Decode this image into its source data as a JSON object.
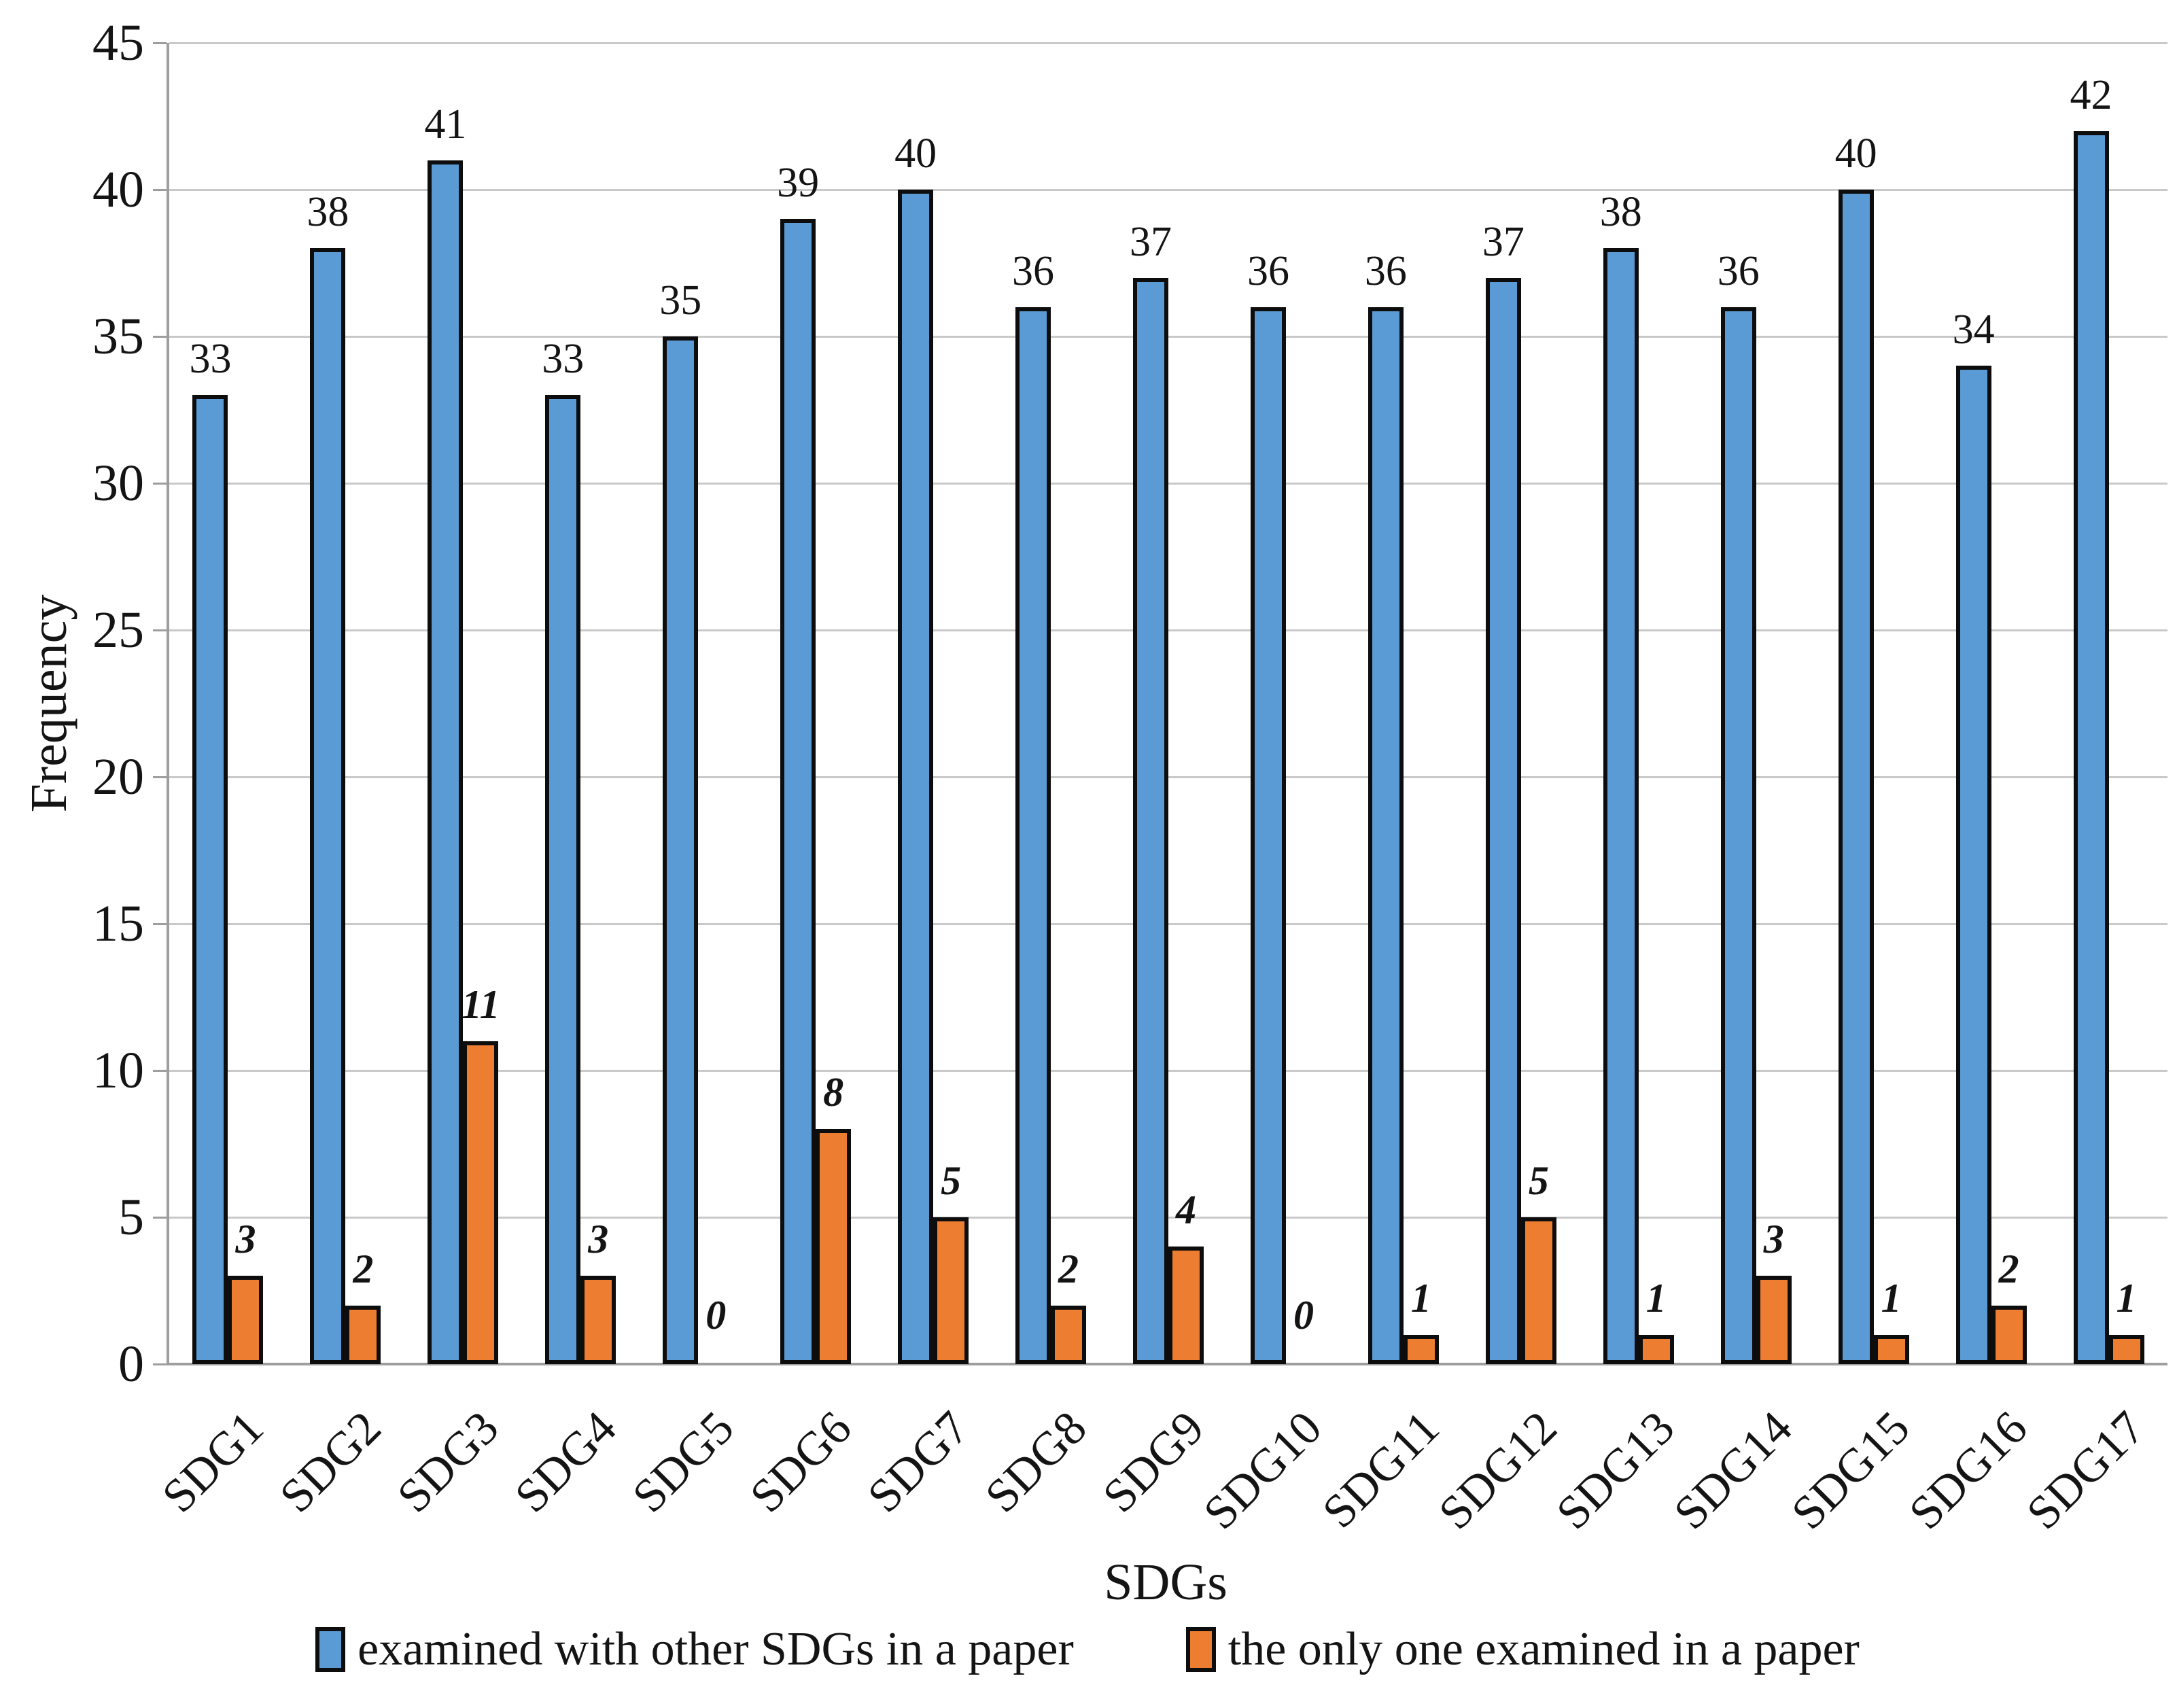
{
  "chart_data": {
    "type": "bar",
    "title": "",
    "categories": [
      "SDG1",
      "SDG2",
      "SDG3",
      "SDG4",
      "SDG5",
      "SDG6",
      "SDG7",
      "SDG8",
      "SDG9",
      "SDG10",
      "SDG11",
      "SDG12",
      "SDG13",
      "SDG14",
      "SDG15",
      "SDG16",
      "SDG17"
    ],
    "series": [
      {
        "name": "examined with other SDGs in a paper",
        "color": "#5B9BD5",
        "values": [
          33,
          38,
          41,
          33,
          35,
          39,
          40,
          36,
          37,
          36,
          36,
          37,
          38,
          36,
          40,
          34,
          42
        ]
      },
      {
        "name": "the only one examined in a paper",
        "color": "#ED7D31",
        "values": [
          3,
          2,
          11,
          3,
          0,
          8,
          5,
          2,
          4,
          0,
          1,
          5,
          1,
          3,
          1,
          2,
          1
        ]
      }
    ],
    "xlabel": "SDGs",
    "ylabel": "Frequency",
    "ylim": [
      0,
      45
    ],
    "ytick_step": 5,
    "yticks": [
      0,
      5,
      10,
      15,
      20,
      25,
      30,
      35,
      40,
      45
    ],
    "grid": true,
    "legend_position": "bottom",
    "bar_border_color": "#0d0d0d",
    "data_labels_shown": true
  },
  "colors": {
    "background": "#ffffff",
    "gridline": "#c9c9c9",
    "axis_line": "#9e9e9e",
    "text": "#141414",
    "series_blue": "#5B9BD5",
    "series_orange": "#ED7D31"
  }
}
